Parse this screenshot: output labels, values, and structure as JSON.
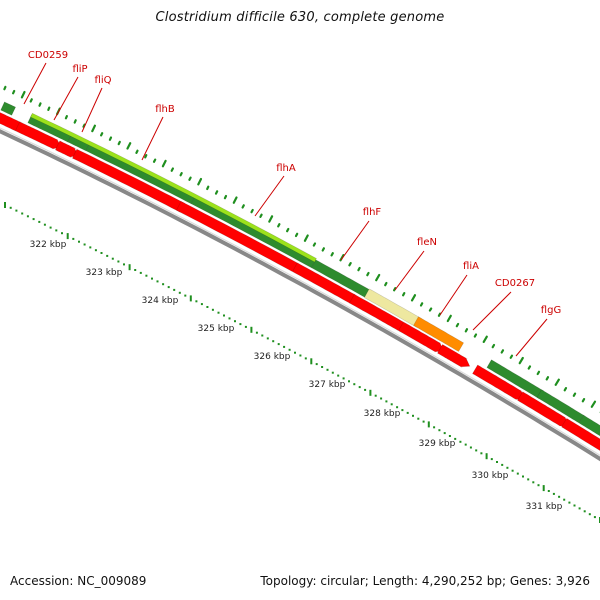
{
  "title": "Clostridium difficile 630, complete genome",
  "footer": {
    "accession": "Accession: NC_009089",
    "topology": "Topology: circular; Length: 4,290,252 bp; Genes: 3,926"
  },
  "colors": {
    "gene_label": "#cc0000",
    "cds": "#ff0000",
    "cds_dark": "#b30000",
    "dark_green": "#2e8b2e",
    "light_green": "#9ce21c",
    "pale_yellow": "#eee8a0",
    "orange": "#ff8c00",
    "dots": "#1f8f1f",
    "backbone": "#888888"
  },
  "ruler_labels": [
    "322 kbp",
    "323 kbp",
    "324 kbp",
    "325 kbp",
    "326 kbp",
    "327 kbp",
    "328 kbp",
    "329 kbp",
    "330 kbp",
    "331 kbp"
  ],
  "gene_labels": [
    "CD0259",
    "fliP",
    "fliQ",
    "flhB",
    "flhA",
    "flhF",
    "fleN",
    "fliA",
    "CD0267",
    "flgG"
  ]
}
